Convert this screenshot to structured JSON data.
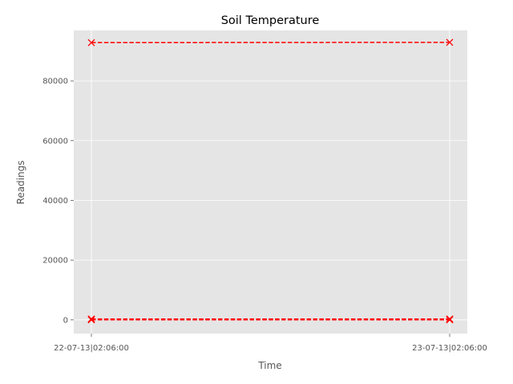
{
  "chart_data": {
    "type": "line",
    "title": "Soil Temperature",
    "xlabel": "Time",
    "ylabel": "Readings",
    "categories": [
      "22-07-13|02:06:00",
      "23-07-13|02:06:00"
    ],
    "ylim": [
      -4600,
      96900
    ],
    "yticks": [
      0,
      20000,
      40000,
      60000,
      80000
    ],
    "ytick_labels": [
      "0",
      "20000",
      "40000",
      "60000",
      "80000"
    ],
    "grid": true,
    "legend": null,
    "series": [
      {
        "values": [
          92800,
          92900
        ],
        "color": "#ff0000",
        "linestyle": "dashed",
        "marker": "x"
      },
      {
        "values": [
          300,
          300
        ],
        "color": "#ff0000",
        "linestyle": "dashed",
        "marker": "x"
      },
      {
        "values": [
          120,
          120
        ],
        "color": "#ff0000",
        "linestyle": "dashed",
        "marker": "x"
      },
      {
        "values": [
          20,
          20
        ],
        "color": "#ff0000",
        "linestyle": "dashed",
        "marker": "x"
      }
    ],
    "colors": {
      "plot_background": "#e5e5e5",
      "grid": "#ffffff",
      "tick_text": "#555555",
      "title_text": "#000000"
    }
  }
}
